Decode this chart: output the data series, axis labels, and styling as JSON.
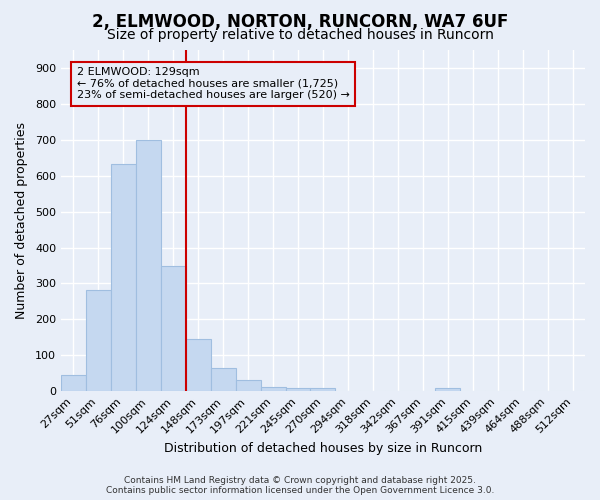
{
  "title1": "2, ELMWOOD, NORTON, RUNCORN, WA7 6UF",
  "title2": "Size of property relative to detached houses in Runcorn",
  "xlabel": "Distribution of detached houses by size in Runcorn",
  "ylabel": "Number of detached properties",
  "categories": [
    "27sqm",
    "51sqm",
    "76sqm",
    "100sqm",
    "124sqm",
    "148sqm",
    "173sqm",
    "197sqm",
    "221sqm",
    "245sqm",
    "270sqm",
    "294sqm",
    "318sqm",
    "342sqm",
    "367sqm",
    "391sqm",
    "415sqm",
    "439sqm",
    "464sqm",
    "488sqm",
    "512sqm"
  ],
  "values": [
    45,
    283,
    632,
    700,
    350,
    145,
    65,
    30,
    12,
    10,
    8,
    0,
    0,
    0,
    0,
    8,
    0,
    0,
    0,
    0,
    0
  ],
  "bar_color": "#c5d8f0",
  "bar_edge_color": "#a0bee0",
  "vline_color": "#cc0000",
  "annotation_line1": "2 ELMWOOD: 129sqm",
  "annotation_line2": "← 76% of detached houses are smaller (1,725)",
  "annotation_line3": "23% of semi-detached houses are larger (520) →",
  "annotation_box_color": "#cc0000",
  "ylim": [
    0,
    950
  ],
  "yticks": [
    0,
    100,
    200,
    300,
    400,
    500,
    600,
    700,
    800,
    900
  ],
  "bg_color": "#e8eef8",
  "plot_bg_color": "#e8eef8",
  "grid_color": "#ffffff",
  "title_fontsize": 12,
  "subtitle_fontsize": 10,
  "axis_label_fontsize": 9,
  "tick_fontsize": 8,
  "footer_line1": "Contains HM Land Registry data © Crown copyright and database right 2025.",
  "footer_line2": "Contains public sector information licensed under the Open Government Licence 3.0."
}
